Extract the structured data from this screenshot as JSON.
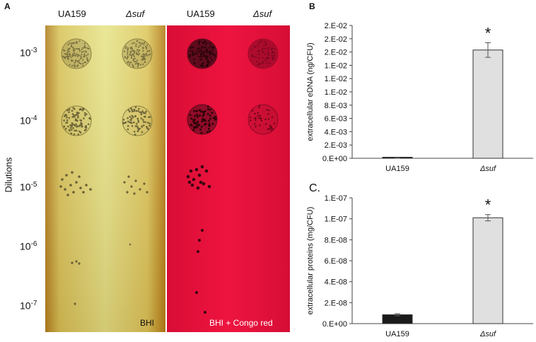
{
  "panel_a": {
    "letter": "A",
    "strains": [
      "UA159",
      "Δsuf",
      "UA159",
      "Δsuf"
    ],
    "ylabel": "Dilutions",
    "dilutions": [
      {
        "base": "10",
        "exp": "-3"
      },
      {
        "base": "10",
        "exp": "-4"
      },
      {
        "base": "10",
        "exp": "-5"
      },
      {
        "base": "10",
        "exp": "-6"
      },
      {
        "base": "10",
        "exp": "-7"
      }
    ],
    "plate_left_label": "BHI",
    "plate_right_label": "BHI + Congo red",
    "colors": {
      "bhi": "#d9c94a",
      "congo": "#e8123c"
    }
  },
  "chart_data": [
    {
      "panel": "B",
      "type": "bar",
      "categories": [
        "UA159",
        "Δsuf"
      ],
      "values": [
        5e-05,
        0.0163
      ],
      "errors": [
        2e-05,
        0.0011
      ],
      "colors": [
        "#1a1a1a",
        "#e0e0e0"
      ],
      "ylabel": "extracellular eDNA (ng/CFU)",
      "ylim": [
        0,
        0.02
      ],
      "yticks": [
        "0.E+00",
        "2.E-03",
        "4.E-03",
        "6.E-03",
        "8.E-03",
        "1.E-02",
        "1.E-02",
        "1.E-02",
        "2.E-02",
        "2.E-02",
        "2.E-02"
      ],
      "annotation": "*"
    },
    {
      "panel": "C.",
      "type": "bar",
      "categories": [
        "UA159",
        "Δsuf"
      ],
      "values": [
        8.5e-09,
        1.01e-07
      ],
      "errors": [
        1e-09,
        3e-09
      ],
      "colors": [
        "#1a1a1a",
        "#e0e0e0"
      ],
      "ylabel": "extracellular proteins (mg/CFU)",
      "ylim": [
        0,
        1.2e-07
      ],
      "yticks": [
        "0.E+00",
        "2.E-08",
        "4.E-08",
        "6.E-08",
        "8.E-08",
        "1.E-07",
        "1.E-07"
      ],
      "annotation": "*"
    }
  ]
}
